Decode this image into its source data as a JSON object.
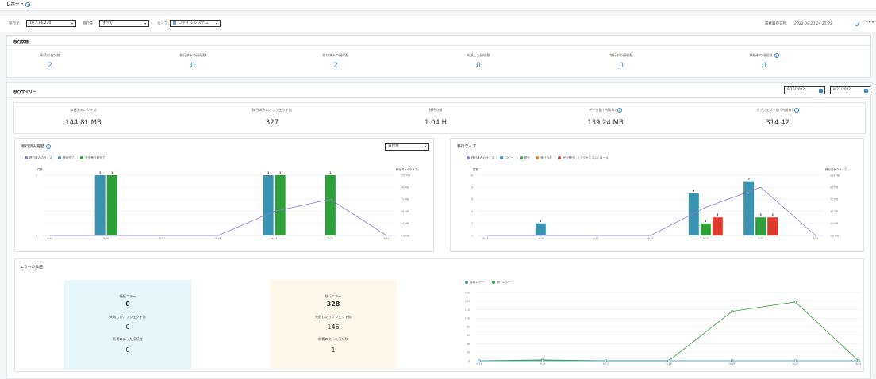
{
  "header": {
    "title": "レポート"
  },
  "filters": {
    "source_label": "移行元:",
    "source_value": "10.2.86.230",
    "dest_label": "移行先:",
    "dest_value": "すべて",
    "type_label": "タイプ:",
    "type_value": "ファイル システム",
    "last_updated_label": "最終取得日時:",
    "last_updated_value": "2022-09-20 14:25:23"
  },
  "migration_status": {
    "title": "移行状態",
    "stats": [
      {
        "label": "接続の合計数",
        "value": "2"
      },
      {
        "label": "移行済みの接続数",
        "value": "0"
      },
      {
        "label": "保存済みの接続数",
        "value": "2"
      },
      {
        "label": "失敗した接続数",
        "value": "0"
      },
      {
        "label": "移行中の接続数",
        "value": "0"
      },
      {
        "label": "移動中の接続数",
        "value": "0"
      }
    ]
  },
  "migration_summary": {
    "title": "移行サマリー",
    "date_from": "9/15/2022",
    "date_to": "9/21/2022",
    "metrics": [
      {
        "label": "移行済みのサイズ",
        "value": "144.81 MB"
      },
      {
        "label": "移行済みのオブジェクト数",
        "value": "327"
      },
      {
        "label": "移行時間",
        "value": "1.04 H"
      },
      {
        "label": "データ量 (時間毎)",
        "value": "139.24 MB"
      },
      {
        "label": "オブジェクト数 (時間毎)",
        "value": "314.42"
      }
    ]
  },
  "charts": {
    "history": {
      "title": "移行済み履歴",
      "select_value": "日付別",
      "legend": [
        "移行済みのサイズ",
        "移行完了",
        "完全移行数完了"
      ],
      "left_axis_label": "件数",
      "right_axis_label": "移行済みのサイズ",
      "colors": {
        "size": "#8b7bd8",
        "a": "#3a93b0",
        "b": "#2ea03a"
      }
    },
    "type": {
      "title": "移行タイプ",
      "legend": [
        "移行済みのサイズ",
        "コピー",
        "移行",
        "移行のみ",
        "完全移行したアクセスコントロール"
      ],
      "left_axis_label": "件数",
      "right_axis_label": "移行済みのサイズ",
      "colors": {
        "size": "#8b7bd8",
        "copy": "#3a93b0",
        "move": "#2ea03a",
        "only": "#e67e22",
        "acl": "#e03a2e"
      }
    },
    "errors": {
      "title": "エラーの数値",
      "boxes": [
        {
          "label1": "接続エラー",
          "value1": "0",
          "label2": "失敗したオブジェクト数",
          "value2": "0",
          "label3": "影響のあった接続数",
          "value3": "0",
          "bg": "#e6f6fd"
        },
        {
          "label1": "移行エラー",
          "value1": "328",
          "label2": "失敗したオブジェクト数",
          "value2": "146",
          "label3": "影響のあった接続数",
          "value3": "1",
          "bg": "#fdf8ea"
        }
      ],
      "legend": [
        "接続エラー",
        "移行エラー"
      ],
      "colors": {
        "conn": "#3a93b0",
        "mig": "#2ea03a"
      }
    }
  },
  "chart_data": [
    {
      "type": "bar",
      "categories": [
        "9/15",
        "9/16",
        "9/17",
        "9/18",
        "9/19",
        "9/20",
        "9/21"
      ],
      "series": [
        {
          "name": "移行完了",
          "values": [
            0,
            1,
            0,
            0,
            1,
            0,
            0
          ]
        },
        {
          "name": "完全移行数完了",
          "values": [
            0,
            1,
            0,
            0,
            1,
            1,
            0
          ]
        },
        {
          "name": "移行済みのサイズ",
          "values": [
            0,
            0,
            0,
            0,
            48,
            72,
            0
          ]
        }
      ],
      "ylim": [
        0,
        1
      ],
      "y2lim": [
        0,
        120
      ],
      "y2ticks": [
        "0.0 MB",
        "24 MB",
        "48 MB",
        "72 MB",
        "96 MB",
        "120 MB"
      ]
    },
    {
      "type": "bar",
      "categories": [
        "9/15",
        "9/16",
        "9/17",
        "9/18",
        "9/19",
        "9/20",
        "9/21"
      ],
      "series": [
        {
          "name": "コピー",
          "values": [
            0,
            2,
            0,
            0,
            7,
            9,
            0
          ]
        },
        {
          "name": "移行",
          "values": [
            0,
            0,
            0,
            0,
            2,
            3,
            0
          ]
        },
        {
          "name": "完全移行したアクセスコントロール",
          "values": [
            0,
            0,
            0,
            0,
            3,
            3,
            0
          ]
        },
        {
          "name": "移行済みのサイズ",
          "values": [
            0,
            0,
            0,
            0,
            56,
            96,
            0
          ]
        }
      ],
      "ylim": [
        0,
        10
      ],
      "yticks": [
        0,
        2,
        4,
        6,
        8,
        10
      ],
      "y2lim": [
        0,
        120
      ],
      "y2ticks": [
        "0.0 MB",
        "24 MB",
        "48 MB",
        "72 MB",
        "96 MB",
        "120 MB"
      ]
    },
    {
      "type": "line",
      "categories": [
        "9/15",
        "9/16",
        "9/17",
        "9/18",
        "9/19",
        "9/20",
        "9/21"
      ],
      "series": [
        {
          "name": "接続エラー",
          "values": [
            0,
            0,
            0,
            0,
            0,
            0,
            0
          ]
        },
        {
          "name": "移行エラー",
          "values": [
            0,
            2,
            0,
            0,
            116,
            138,
            0
          ]
        }
      ],
      "ylim": [
        0,
        160
      ],
      "yticks": [
        0,
        20,
        40,
        60,
        80,
        100,
        120,
        140,
        160
      ]
    }
  ]
}
